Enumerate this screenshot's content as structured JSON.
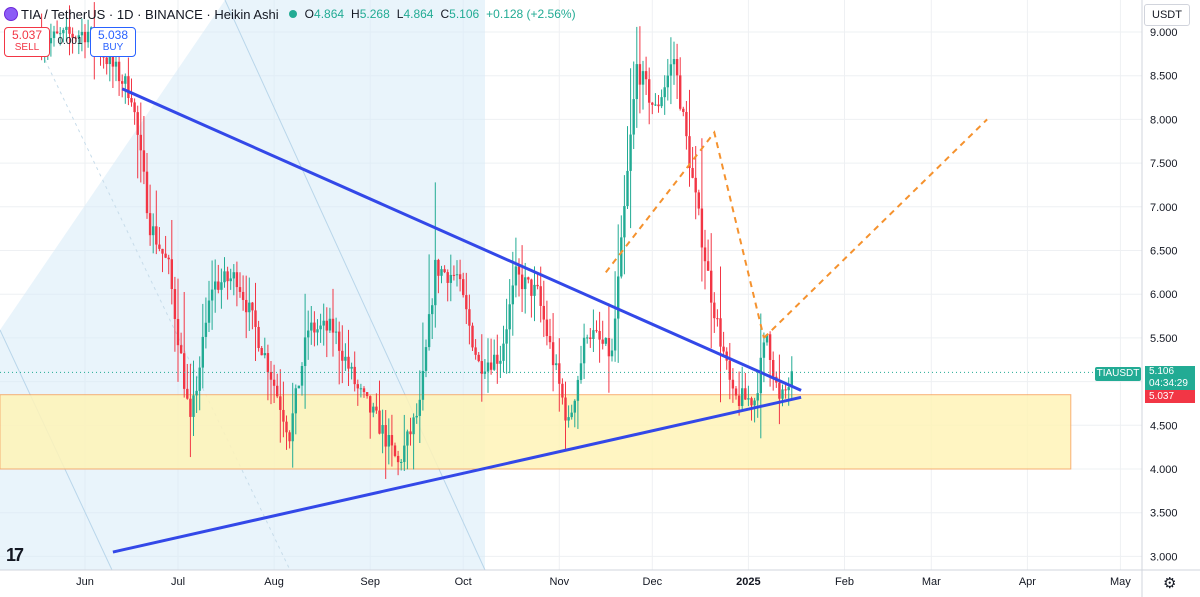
{
  "header": {
    "title": "TIA / TetherUS · 1D · BINANCE · Heikin Ashi",
    "ohlc": {
      "o_label": "O",
      "o_value": "4.864",
      "h_label": "H",
      "h_value": "5.268",
      "l_label": "L",
      "l_value": "4.864",
      "c_label": "C",
      "c_value": "5.106",
      "change": "+0.128 (+2.56%)"
    }
  },
  "trade": {
    "sell_price": "5.037",
    "sell_label": "SELL",
    "spread": "0.001",
    "buy_price": "5.038",
    "buy_label": "BUY"
  },
  "currency": "USDT",
  "price_tags": {
    "symbol": "TIAUSDT",
    "last": "5.106",
    "countdown": "04:34:29",
    "ask": "5.037"
  },
  "colors": {
    "up": "#22ab94",
    "down": "#f23645",
    "trendline": "#3348e8",
    "projection": "#f5922e",
    "zone_fill": "#fff4b8",
    "zone_border": "#f7a35c",
    "channel": "#d7ebf7"
  },
  "icons": {
    "logo": "tradingview-logo-icon",
    "settings": "gear-icon"
  },
  "chart_data": {
    "type": "candlestick",
    "chart_style": "Heikin Ashi",
    "symbol": "TIA / TetherUS",
    "interval": "1D",
    "exchange": "BINANCE",
    "y_axis": {
      "ticks": [
        "3.000",
        "3.500",
        "4.000",
        "4.500",
        "5.000",
        "5.500",
        "6.000",
        "6.500",
        "7.000",
        "7.500",
        "8.000",
        "8.500",
        "9.000"
      ],
      "ylim": [
        2.95,
        9.2
      ],
      "position": "right"
    },
    "x_axis": {
      "ticks": [
        "Jun",
        "Jul",
        "Aug",
        "Sep",
        "Oct",
        "Nov",
        "Dec",
        "2025",
        "Feb",
        "Mar",
        "Apr",
        "May"
      ],
      "bold_ticks": [
        "2025"
      ]
    },
    "candles_anchor_path": [
      [
        "2024-05-18",
        8.9
      ],
      [
        "2024-06-02",
        9.0
      ],
      [
        "2024-06-16",
        8.3
      ],
      [
        "2024-06-22",
        6.8
      ],
      [
        "2024-06-28",
        6.3
      ],
      [
        "2024-07-05",
        4.5
      ],
      [
        "2024-07-12",
        6.1
      ],
      [
        "2024-07-20",
        6.2
      ],
      [
        "2024-07-30",
        5.2
      ],
      [
        "2024-08-06",
        4.4
      ],
      [
        "2024-08-12",
        5.6
      ],
      [
        "2024-08-20",
        5.6
      ],
      [
        "2024-08-28",
        4.9
      ],
      [
        "2024-09-04",
        4.5
      ],
      [
        "2024-09-10",
        4.05
      ],
      [
        "2024-09-17",
        4.7
      ],
      [
        "2024-09-22",
        6.3
      ],
      [
        "2024-09-29",
        6.2
      ],
      [
        "2024-10-06",
        5.2
      ],
      [
        "2024-10-13",
        5.3
      ],
      [
        "2024-10-18",
        6.2
      ],
      [
        "2024-10-25",
        6.0
      ],
      [
        "2024-11-04",
        4.5
      ],
      [
        "2024-11-10",
        5.6
      ],
      [
        "2024-11-18",
        5.3
      ],
      [
        "2024-11-26",
        8.6
      ],
      [
        "2024-12-02",
        8.1
      ],
      [
        "2024-12-08",
        8.7
      ],
      [
        "2024-12-14",
        7.3
      ],
      [
        "2024-12-20",
        6.0
      ],
      [
        "2024-12-27",
        4.8
      ],
      [
        "2025-01-03",
        4.8
      ],
      [
        "2025-01-07",
        5.55
      ],
      [
        "2025-01-11",
        4.75
      ],
      [
        "2025-01-16",
        5.1
      ]
    ],
    "last_close": 5.106,
    "annotations": {
      "descending_trendline": [
        [
          "2024-06-13",
          8.35
        ],
        [
          "2025-01-18",
          4.9
        ]
      ],
      "ascending_trendline": [
        [
          "2024-06-10",
          3.05
        ],
        [
          "2025-01-18",
          4.82
        ]
      ],
      "support_zone": {
        "from": "2023-12-01",
        "to": "2025-04-15",
        "low": 4.0,
        "high": 4.85
      },
      "dashed_projection_1": [
        [
          "2024-11-16",
          6.25
        ],
        [
          "2024-12-21",
          7.85
        ],
        [
          "2025-01-06",
          5.5
        ]
      ],
      "dashed_projection_2": [
        [
          "2025-01-06",
          5.5
        ],
        [
          "2025-03-19",
          8.0
        ]
      ],
      "channel_band": "descending parallel channel (light blue)"
    }
  }
}
